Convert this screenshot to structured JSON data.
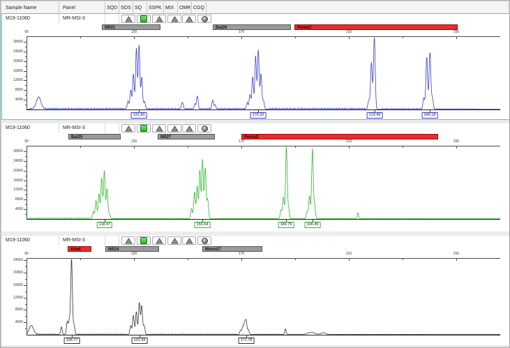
{
  "header": {
    "columns": [
      "Sample Name",
      "Panel",
      "SQD",
      "SOS",
      "SQ",
      "SSPK",
      "MIX",
      "OMR",
      "CGQ"
    ]
  },
  "flag_icons": [
    "triangle-warning",
    "green-square-pass",
    "triangle-warning",
    "triangle-warning",
    "triangle-warning",
    "gray-sphere"
  ],
  "colors": {
    "selection": "#53c6c9",
    "marker_gray": "#9a9a9a",
    "marker_red": "#ee2b2b",
    "trace_blue": "#3a3ad1",
    "trace_green": "#2eb82e",
    "trace_black": "#333333"
  },
  "panels": [
    {
      "sample_name": "M19-11060",
      "panel_name": "MR-MSI-3",
      "selected": true,
      "trace_color": "#3a3ad1",
      "markers": [
        {
          "label": "NR21",
          "from": 118.0,
          "to": 139.7,
          "color": "gray"
        },
        {
          "label": "Bat26",
          "from": 159.3,
          "to": 188.4,
          "color": "gray"
        },
        {
          "label": "PentaC",
          "from": 189.7,
          "to": 250.5,
          "color": "red"
        }
      ],
      "x_axis": {
        "min": 90,
        "max": 266,
        "major_ticks": [
          90,
          130,
          170,
          210,
          250
        ],
        "minor_step": 20
      },
      "y_axis": {
        "max_value": 30000,
        "tick_step": 4000,
        "tick_max": 28000
      },
      "peak_labels": [
        {
          "text": "131.90",
          "bp": 131.9
        },
        {
          "text": "176.32",
          "bp": 176.32
        },
        {
          "text": "219.49",
          "bp": 219.49
        },
        {
          "text": "240.18",
          "bp": 240.18
        }
      ],
      "trace": {
        "clusters": [
          {
            "center_bp": 94.5,
            "max_height": 4800,
            "sigma": 0.85,
            "stutter": [
              [
                0,
                1
              ]
            ]
          },
          {
            "center_bp": 131.9,
            "max_height": 26500,
            "sigma": 0.3,
            "stutter": [
              [
                -4.1,
                0.12
              ],
              [
                -3.1,
                0.3
              ],
              [
                -2.1,
                0.55
              ],
              [
                -1,
                0.95
              ],
              [
                0,
                1
              ],
              [
                1,
                0.5
              ],
              [
                2,
                0.12
              ]
            ]
          },
          {
            "center_bp": 148.0,
            "max_height": 2800,
            "sigma": 0.32,
            "stutter": [
              [
                0,
                1
              ]
            ]
          },
          {
            "center_bp": 153.6,
            "max_height": 5300,
            "sigma": 0.3,
            "stutter": [
              [
                -0.9,
                0.35
              ],
              [
                0,
                1
              ]
            ]
          },
          {
            "center_bp": 159.3,
            "max_height": 3500,
            "sigma": 0.3,
            "stutter": [
              [
                0,
                1
              ],
              [
                0.9,
                0.45
              ]
            ]
          },
          {
            "center_bp": 176.3,
            "max_height": 24500,
            "sigma": 0.3,
            "stutter": [
              [
                -4.1,
                0.1
              ],
              [
                -3.1,
                0.25
              ],
              [
                -2.1,
                0.55
              ],
              [
                -1,
                0.9
              ],
              [
                0,
                1
              ],
              [
                1,
                0.6
              ],
              [
                1.9,
                0.15
              ]
            ]
          },
          {
            "center_bp": 219.5,
            "max_height": 29800,
            "sigma": 0.32,
            "stutter": [
              [
                -2.1,
                0.12
              ],
              [
                -1.1,
                0.65
              ],
              [
                0,
                1
              ]
            ]
          },
          {
            "center_bp": 240.2,
            "max_height": 23500,
            "sigma": 0.32,
            "stutter": [
              [
                -2.3,
                0.2
              ],
              [
                -1.2,
                0.92
              ],
              [
                0,
                1
              ],
              [
                0.9,
                0.2
              ]
            ]
          }
        ],
        "noise_segments": [
          {
            "from": 91,
            "to": 128,
            "amp": 650
          },
          {
            "from": 134,
            "to": 173,
            "amp": 600
          },
          {
            "from": 180,
            "to": 216,
            "amp": 650
          },
          {
            "from": 222,
            "to": 237,
            "amp": 500
          },
          {
            "from": 242,
            "to": 258,
            "amp": 350
          }
        ]
      }
    },
    {
      "sample_name": "M19-11060",
      "panel_name": "MR-MSI-3",
      "selected": false,
      "trace_color": "#2eb82e",
      "markers": [
        {
          "label": "Bat25",
          "from": 105.6,
          "to": 125.1,
          "color": "gray"
        },
        {
          "label": "NR27",
          "from": 138.8,
          "to": 160.1,
          "color": "gray"
        },
        {
          "label": "PentaD",
          "from": 170.0,
          "to": 243.2,
          "color": "red"
        }
      ],
      "x_axis": {
        "min": 90,
        "max": 266,
        "major_ticks": [
          90,
          130,
          170,
          210,
          250
        ],
        "minor_step": 20
      },
      "y_axis": {
        "max_value": 30000,
        "tick_step": 4000,
        "tick_max": 28000
      },
      "peak_labels": [
        {
          "text": "118.97",
          "bp": 118.97
        },
        {
          "text": "155.54",
          "bp": 155.54
        },
        {
          "text": "186.75",
          "bp": 186.75
        },
        {
          "text": "196.45",
          "bp": 196.45
        }
      ],
      "trace": {
        "clusters": [
          {
            "center_bp": 118.97,
            "max_height": 19800,
            "sigma": 0.3,
            "stutter": [
              [
                -4.1,
                0.15
              ],
              [
                -3.1,
                0.38
              ],
              [
                -2,
                0.52
              ],
              [
                -1,
                0.85
              ],
              [
                0,
                1
              ],
              [
                1,
                0.63
              ],
              [
                1.9,
                0.1
              ]
            ]
          },
          {
            "center_bp": 155.54,
            "max_height": 24500,
            "sigma": 0.3,
            "stutter": [
              [
                -4.1,
                0.17
              ],
              [
                -3,
                0.45
              ],
              [
                -2,
                0.55
              ],
              [
                -1,
                0.82
              ],
              [
                0,
                1
              ],
              [
                1,
                0.86
              ],
              [
                1.9,
                0.33
              ]
            ]
          },
          {
            "center_bp": 186.75,
            "max_height": 29800,
            "sigma": 0.3,
            "stutter": [
              [
                -2,
                0.12
              ],
              [
                -1.1,
                0.3
              ],
              [
                0,
                1
              ],
              [
                0.8,
                0.15
              ]
            ]
          },
          {
            "center_bp": 196.45,
            "max_height": 28800,
            "sigma": 0.3,
            "stutter": [
              [
                -2,
                0.1
              ],
              [
                -1.1,
                0.33
              ],
              [
                0,
                1
              ],
              [
                0.8,
                0.2
              ]
            ]
          },
          {
            "center_bp": 213.4,
            "max_height": 2400,
            "sigma": 0.22,
            "stutter": [
              [
                0,
                1
              ]
            ]
          }
        ],
        "noise_segments": [
          {
            "from": 91,
            "to": 114,
            "amp": 500
          },
          {
            "from": 122,
            "to": 150,
            "amp": 350
          },
          {
            "from": 160,
            "to": 183,
            "amp": 300
          },
          {
            "from": 199,
            "to": 210,
            "amp": 200
          },
          {
            "from": 216,
            "to": 240,
            "amp": 150
          }
        ]
      }
    },
    {
      "sample_name": "M19-11060",
      "panel_name": "MR-MSI-3",
      "selected": false,
      "trace_color": "#333333",
      "markers": [
        {
          "label": "Amel",
          "from": 105.3,
          "to": 114.2,
          "color": "red"
        },
        {
          "label": "NR24",
          "from": 119.4,
          "to": 139.4,
          "color": "gray"
        },
        {
          "label": "Mono27",
          "from": 155.4,
          "to": 177.8,
          "color": "gray"
        }
      ],
      "x_axis": {
        "min": 90,
        "max": 266,
        "major_ticks": [
          90,
          130,
          170,
          210,
          250
        ],
        "minor_step": 20
      },
      "y_axis": {
        "max_value": 24500,
        "tick_step": 4000,
        "tick_max": 24000
      },
      "peak_labels": [
        {
          "text": "106.77",
          "bp": 106.77
        },
        {
          "text": "131.99",
          "bp": 131.99
        },
        {
          "text": "171.78",
          "bp": 171.78
        }
      ],
      "trace": {
        "clusters": [
          {
            "center_bp": 91.8,
            "max_height": 2900,
            "sigma": 0.8,
            "stutter": [
              [
                0,
                1
              ]
            ]
          },
          {
            "center_bp": 103.0,
            "max_height": 2400,
            "sigma": 0.28,
            "stutter": [
              [
                0,
                1
              ]
            ]
          },
          {
            "center_bp": 106.77,
            "max_height": 24300,
            "sigma": 0.3,
            "stutter": [
              [
                -1.6,
                0.17
              ],
              [
                -0.8,
                0.19
              ],
              [
                0,
                1
              ],
              [
                0.9,
                0.13
              ]
            ]
          },
          {
            "center_bp": 131.99,
            "max_height": 10200,
            "sigma": 0.3,
            "stutter": [
              [
                -3.2,
                0.28
              ],
              [
                -2.2,
                0.6
              ],
              [
                -1.1,
                0.72
              ],
              [
                0,
                1
              ],
              [
                0.9,
                0.9
              ],
              [
                1.8,
                0.28
              ]
            ]
          },
          {
            "center_bp": 171.78,
            "max_height": 4400,
            "sigma": 0.28,
            "stutter": [
              [
                -2.1,
                0.3
              ],
              [
                -1.3,
                0.55
              ],
              [
                -0.6,
                0.85
              ],
              [
                0,
                1
              ],
              [
                0.8,
                0.35
              ]
            ]
          },
          {
            "center_bp": 186.4,
            "max_height": 1800,
            "sigma": 0.25,
            "stutter": [
              [
                0,
                1
              ]
            ]
          },
          {
            "center_bp": 196.0,
            "max_height": 700,
            "sigma": 1.2,
            "stutter": [
              [
                0,
                1
              ]
            ]
          },
          {
            "center_bp": 200.5,
            "max_height": 550,
            "sigma": 0.8,
            "stutter": [
              [
                0,
                1
              ]
            ]
          }
        ],
        "noise_segments": [
          {
            "from": 93,
            "to": 101,
            "amp": 300
          },
          {
            "from": 109,
            "to": 127,
            "amp": 280
          },
          {
            "from": 136,
            "to": 168,
            "amp": 260
          },
          {
            "from": 175,
            "to": 184,
            "amp": 220
          },
          {
            "from": 204,
            "to": 240,
            "amp": 120
          }
        ]
      }
    }
  ]
}
